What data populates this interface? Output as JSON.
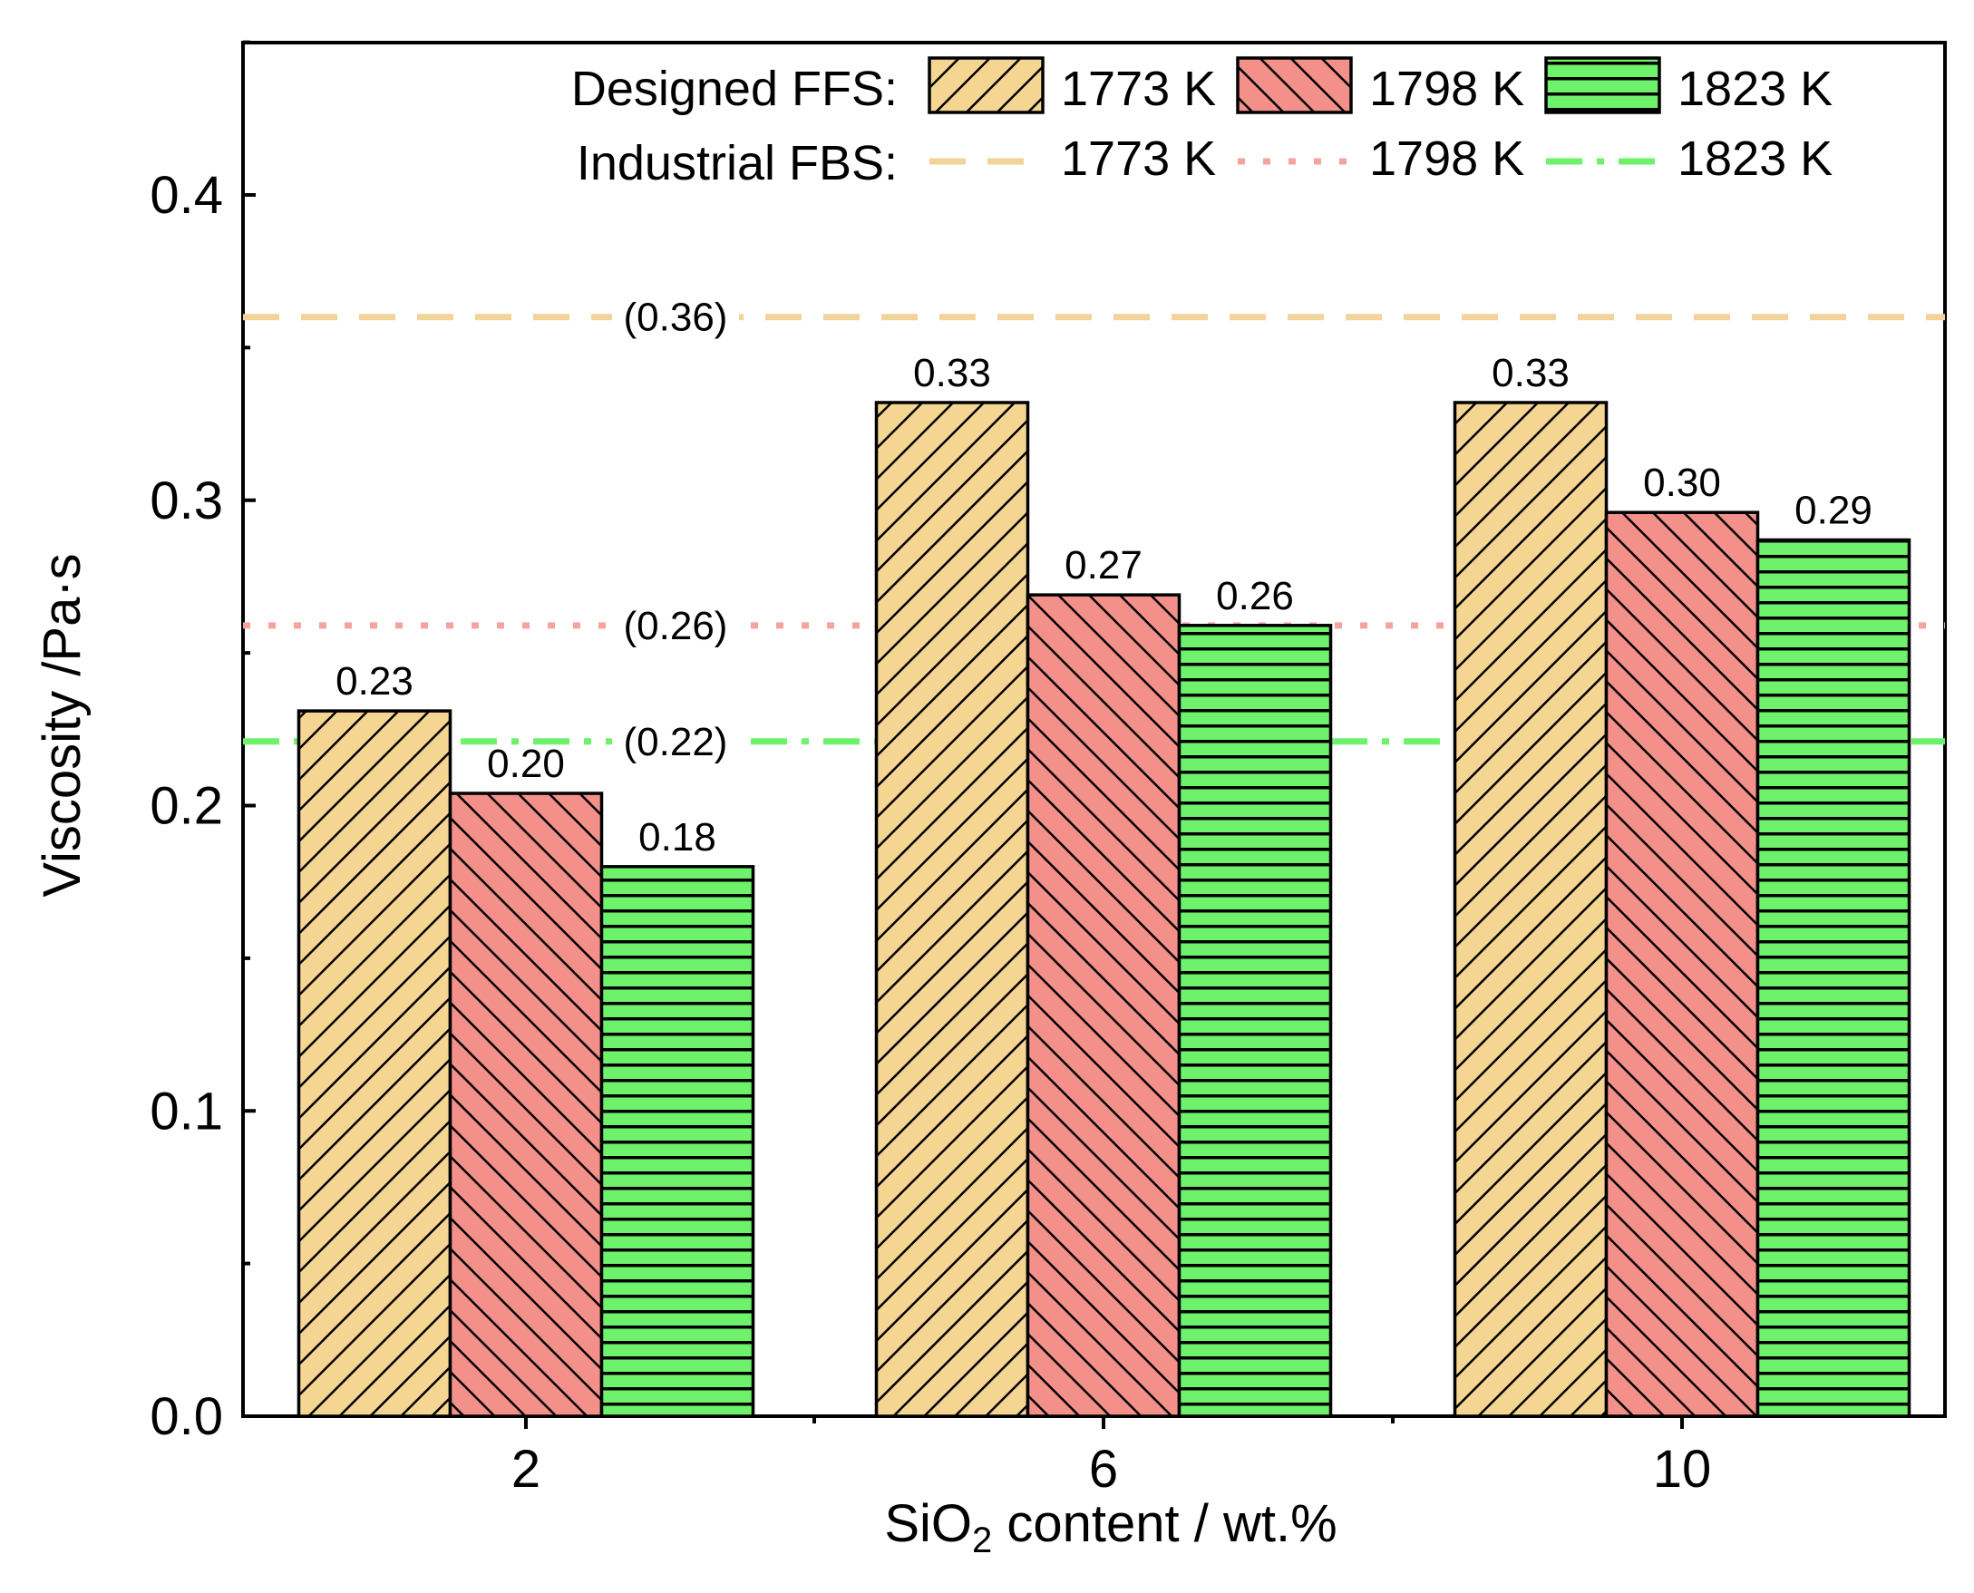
{
  "chart_data": {
    "type": "bar",
    "title": "",
    "xlabel": "SiO",
    "xlabel_sub": "2",
    "xlabel_rest": " content / wt.%",
    "ylabel": "Viscosity /Pa·s",
    "categories": [
      "2",
      "6",
      "10"
    ],
    "ylim": [
      0,
      0.45
    ],
    "yticks": [
      0.0,
      0.1,
      0.2,
      0.3,
      0.4
    ],
    "ytick_labels": [
      "0.0",
      "0.1",
      "0.2",
      "0.3",
      "0.4"
    ],
    "series": [
      {
        "name": "1773 K",
        "color": "#F5D592",
        "pattern": "diag-right",
        "values": [
          0.231,
          0.332,
          0.332
        ],
        "labels": [
          "0.23",
          "0.33",
          "0.33"
        ]
      },
      {
        "name": "1798 K",
        "color": "#F4908A",
        "pattern": "diag-left",
        "values": [
          0.204,
          0.269,
          0.296
        ],
        "labels": [
          "0.20",
          "0.27",
          "0.30"
        ]
      },
      {
        "name": "1823 K",
        "color": "#6FF26B",
        "pattern": "horizontal",
        "values": [
          0.18,
          0.259,
          0.287
        ],
        "labels": [
          "0.18",
          "0.26",
          "0.29"
        ]
      }
    ],
    "reference_lines": [
      {
        "name": "1773 K",
        "value": 0.36,
        "label": "(0.36)",
        "color": "#F2D398",
        "style": "dash"
      },
      {
        "name": "1798 K",
        "value": 0.259,
        "label": "(0.26)",
        "color": "#F5A39D",
        "style": "dot"
      },
      {
        "name": "1823 K",
        "value": 0.221,
        "label": "(0.22)",
        "color": "#6FF26B",
        "style": "dashdot"
      }
    ],
    "legend": {
      "placement": "top-right",
      "bars_heading": "Designed FFS:",
      "lines_heading": "Industrial FBS:"
    }
  }
}
